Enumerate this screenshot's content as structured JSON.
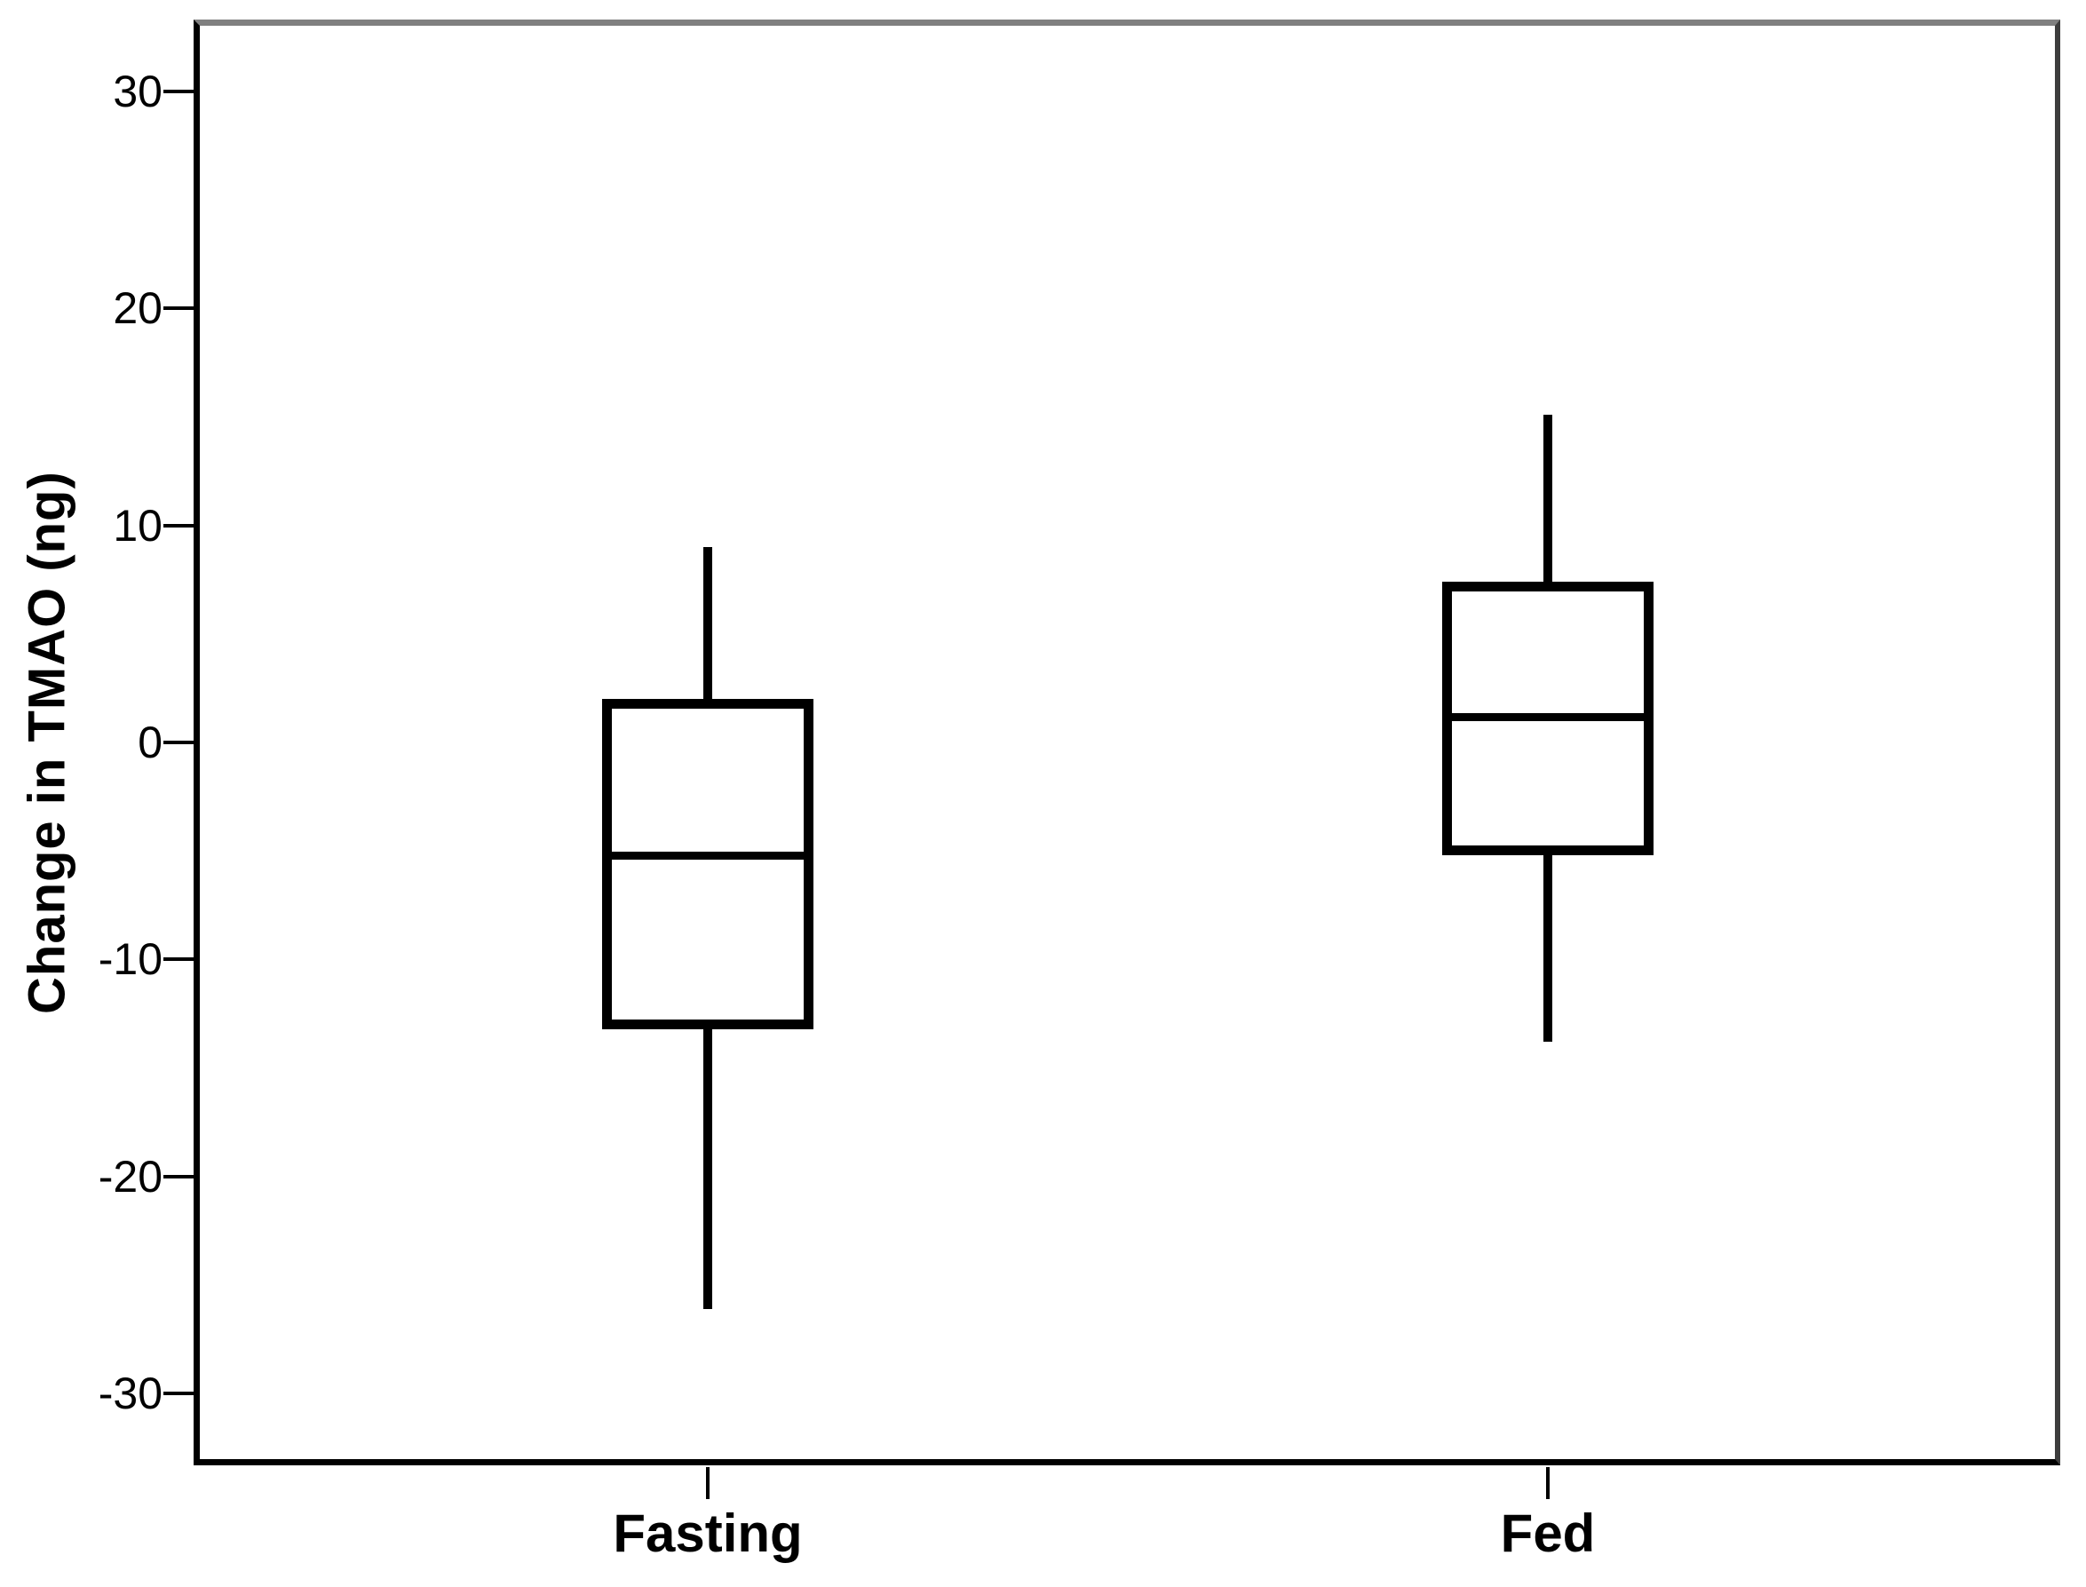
{
  "chart_data": {
    "type": "boxplot",
    "title": "",
    "xlabel": "",
    "ylabel": "Change in TMAO (ng)",
    "categories": [
      "Fasting",
      "Fed"
    ],
    "y_ticks": [
      30,
      20,
      10,
      0,
      -10,
      -20,
      -30
    ],
    "ylim": [
      -33.3,
      33.3
    ],
    "grid": false,
    "legend": "none",
    "series": [
      {
        "category": "Fasting",
        "whisker_low": -26.1,
        "q1": -13.2,
        "median": -5.2,
        "q3": 2.0,
        "whisker_high": 9.0
      },
      {
        "category": "Fed",
        "whisker_low": -13.8,
        "q1": -5.2,
        "median": 1.2,
        "q3": 7.4,
        "whisker_high": 15.1
      }
    ],
    "colors": {
      "box_stroke": "#000000",
      "box_fill": "#ffffff",
      "frame_top": "#808080",
      "frame_right": "#3d3d3d",
      "axis": "#000000",
      "text": "#000000",
      "background": "#ffffff"
    }
  }
}
